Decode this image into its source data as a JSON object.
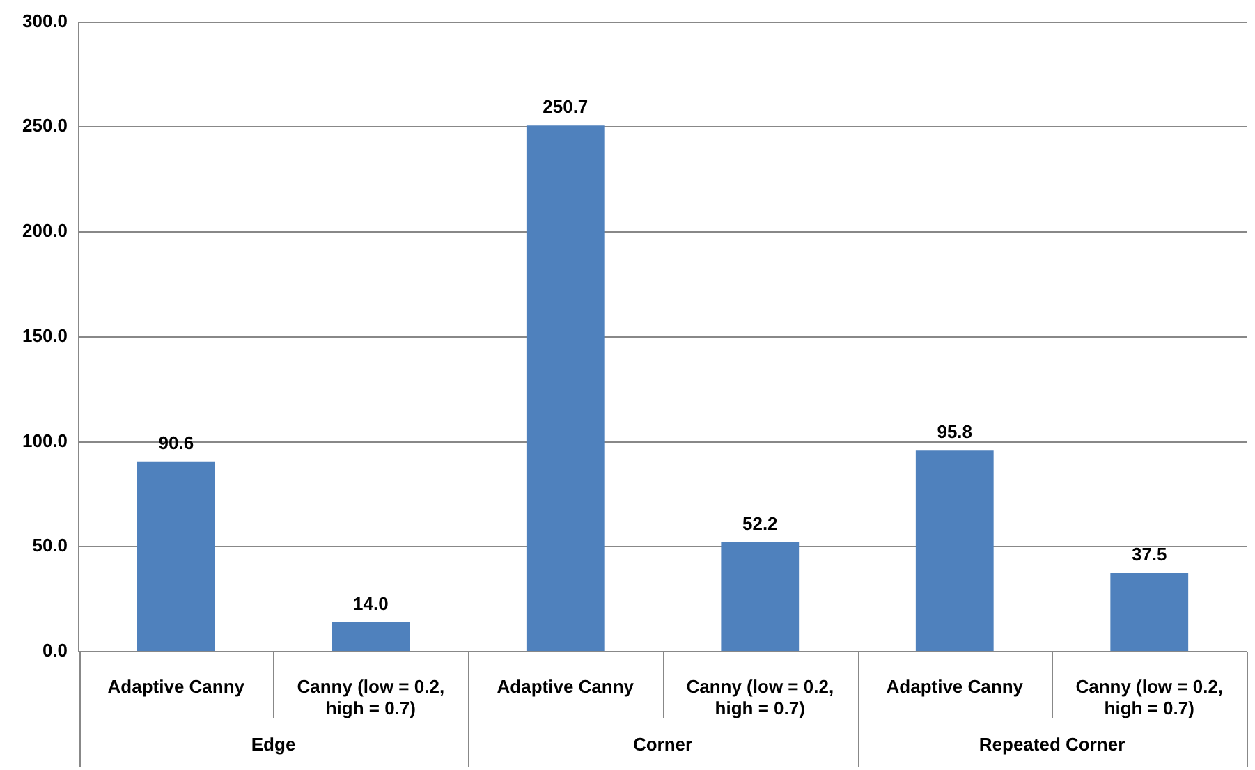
{
  "chart_data": {
    "type": "bar",
    "categories": [
      "Adaptive Canny",
      "Canny (low = 0.2, high = 0.7)",
      "Adaptive Canny",
      "Canny (low = 0.2, high = 0.7)",
      "Adaptive Canny",
      "Canny (low = 0.2, high = 0.7)"
    ],
    "values": [
      90.6,
      14.0,
      250.7,
      52.2,
      95.8,
      37.5
    ],
    "color": "#4f81bd",
    "ylim": [
      0,
      300
    ],
    "yticks": [
      {
        "value": 0,
        "label": "0.0"
      },
      {
        "value": 50,
        "label": "50.0"
      },
      {
        "value": 100,
        "label": "100.0"
      },
      {
        "value": 150,
        "label": "150.0"
      },
      {
        "value": 200,
        "label": "200.0"
      },
      {
        "value": 250,
        "label": "250.0"
      },
      {
        "value": 300,
        "label": "300.0"
      }
    ],
    "grid": "y",
    "legend": false,
    "value_labels": [
      "90.6",
      "14.0",
      "250.7",
      "52.2",
      "95.8",
      "37.5"
    ],
    "annotations": [
      "Edge",
      "Corner",
      "Repeated Corner"
    ]
  }
}
